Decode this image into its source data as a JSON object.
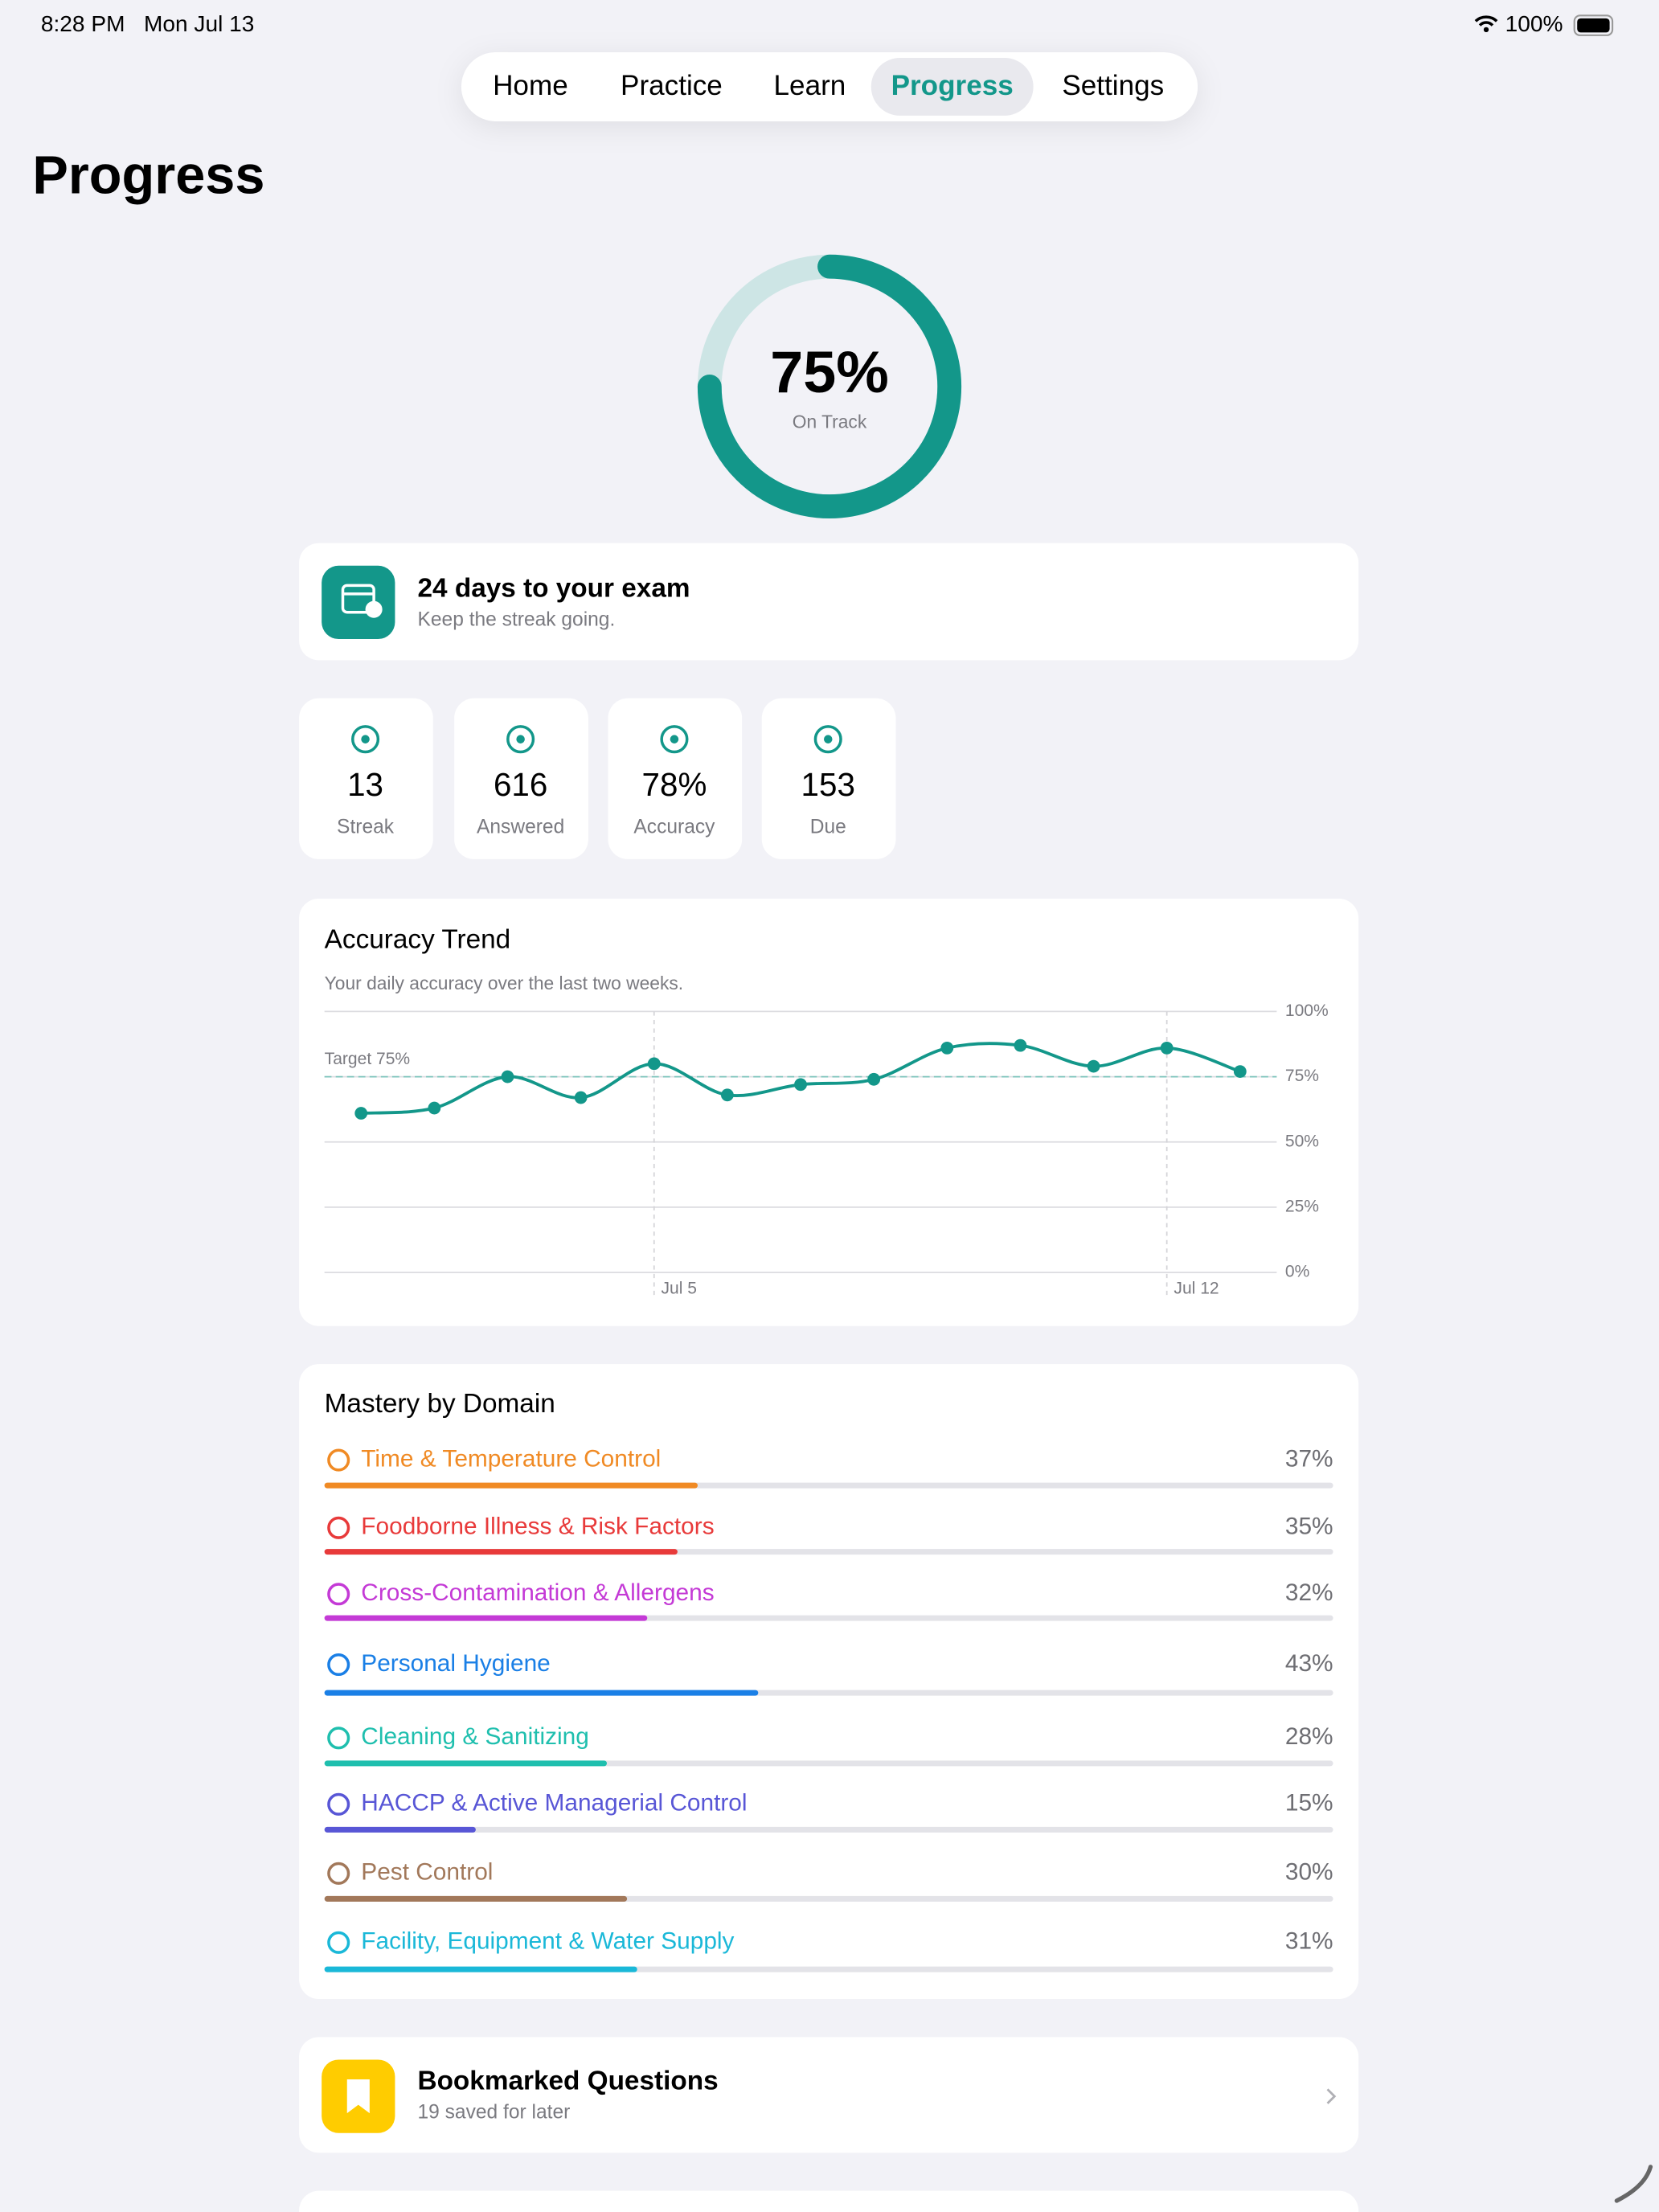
{
  "status_bar": {
    "time": "8:28 PM",
    "date": "Mon Jul 13",
    "battery": "100%"
  },
  "tabs": [
    {
      "label": "Home",
      "active": false
    },
    {
      "label": "Practice",
      "active": false
    },
    {
      "label": "Learn",
      "active": false
    },
    {
      "label": "Progress",
      "active": true
    },
    {
      "label": "Settings",
      "active": false
    }
  ],
  "page_title": "Progress",
  "readiness": {
    "value": 75,
    "label": "75%",
    "caption": "On Track",
    "color": "#13978a",
    "track_color": "#cde5e5"
  },
  "exam_card": {
    "title": "24 days to your exam",
    "subtitle": "Keep the streak going."
  },
  "stats": [
    {
      "value": "13",
      "label": "Streak"
    },
    {
      "value": "616",
      "label": "Answered"
    },
    {
      "value": "78%",
      "label": "Accuracy"
    },
    {
      "value": "153",
      "label": "Due"
    }
  ],
  "chart_data": {
    "type": "line",
    "title": "Accuracy Trend",
    "subtitle": "Your daily accuracy over the last two weeks.",
    "x": [
      1,
      2,
      3,
      4,
      5,
      6,
      7,
      8,
      9,
      10,
      11,
      12,
      13
    ],
    "values": [
      61,
      63,
      75,
      67,
      80,
      68,
      72,
      74,
      86,
      87,
      79,
      86,
      77
    ],
    "color": "#13978a",
    "xlim": [
      0.5,
      13.5
    ],
    "xticks": [
      {
        "value": 5,
        "label": "Jul 5"
      },
      {
        "value": 12,
        "label": "Jul 12"
      }
    ],
    "ylim": [
      0,
      100
    ],
    "yticks": [
      {
        "value": 0,
        "label": "0%"
      },
      {
        "value": 25,
        "label": "25%"
      },
      {
        "value": 50,
        "label": "50%"
      },
      {
        "value": 75,
        "label": "75%"
      },
      {
        "value": 100,
        "label": "100%"
      }
    ],
    "target": {
      "value": 75,
      "label": "Target 75%"
    },
    "grid": true
  },
  "mastery": {
    "title": "Mastery by Domain",
    "domains": [
      {
        "name": "Time & Temperature Control",
        "value": 37,
        "label": "37%",
        "color": "#f08a24"
      },
      {
        "name": "Foodborne Illness & Risk Factors",
        "value": 35,
        "label": "35%",
        "color": "#e83a3a"
      },
      {
        "name": "Cross-Contamination & Allergens",
        "value": 32,
        "label": "32%",
        "color": "#c43ad6"
      },
      {
        "name": "Personal Hygiene",
        "value": 43,
        "label": "43%",
        "color": "#1a7fe6"
      },
      {
        "name": "Cleaning & Sanitizing",
        "value": 28,
        "label": "28%",
        "color": "#1fbfae"
      },
      {
        "name": "HACCP & Active Managerial Control",
        "value": 15,
        "label": "15%",
        "color": "#5856d6"
      },
      {
        "name": "Pest Control",
        "value": 30,
        "label": "30%",
        "color": "#a2785a"
      },
      {
        "name": "Facility, Equipment & Water Supply",
        "value": 31,
        "label": "31%",
        "color": "#1ab8d8"
      }
    ]
  },
  "bookmarks": {
    "title": "Bookmarked Questions",
    "subtitle": "19 saved for later"
  }
}
